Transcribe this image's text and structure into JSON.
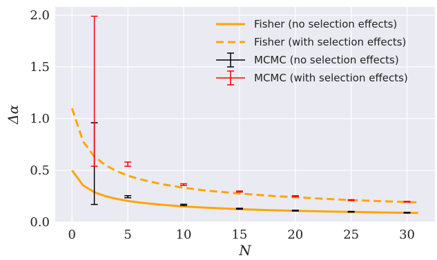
{
  "chart_data": {
    "type": "line",
    "title": "",
    "xlabel": "N",
    "ylabel": "Δα",
    "xlim": [
      -1.5,
      32.5
    ],
    "ylim": [
      0,
      2.08
    ],
    "xticks": [
      0,
      5,
      10,
      15,
      20,
      25,
      30
    ],
    "yticks": [
      0.0,
      0.5,
      1.0,
      1.5,
      2.0
    ],
    "xtick_labels": [
      "0",
      "5",
      "10",
      "15",
      "20",
      "25",
      "30"
    ],
    "ytick_labels": [
      "0.0",
      "0.5",
      "1.0",
      "1.5",
      "2.0"
    ],
    "grid": true,
    "legend_position": "top-right",
    "series": [
      {
        "name": "Fisher (no selection effects)",
        "kind": "line",
        "style": "solid",
        "color": "#FFA500",
        "x": [
          0,
          1,
          2,
          3,
          4,
          5,
          6,
          8,
          10,
          12,
          15,
          18,
          20,
          22,
          25,
          28,
          31
        ],
        "y": [
          0.5,
          0.354,
          0.289,
          0.25,
          0.224,
          0.204,
          0.189,
          0.167,
          0.151,
          0.139,
          0.125,
          0.114,
          0.109,
          0.104,
          0.098,
          0.093,
          0.088
        ]
      },
      {
        "name": "Fisher (with selection effects)",
        "kind": "line",
        "style": "dashed",
        "color": "#FFA500",
        "x": [
          0,
          1,
          2,
          3,
          4,
          5,
          6,
          8,
          10,
          12,
          15,
          18,
          20,
          22,
          25,
          28,
          31
        ],
        "y": [
          1.1,
          0.778,
          0.635,
          0.55,
          0.492,
          0.449,
          0.416,
          0.367,
          0.332,
          0.305,
          0.276,
          0.252,
          0.24,
          0.228,
          0.213,
          0.201,
          0.19
        ]
      },
      {
        "name": "MCMC (no selection effects)",
        "kind": "errorbar",
        "color": "#000000",
        "x": [
          2,
          5,
          10,
          15,
          20,
          25,
          30
        ],
        "low": [
          0.17,
          0.235,
          0.16,
          0.125,
          0.107,
          0.096,
          0.087
        ],
        "high": [
          0.96,
          0.255,
          0.172,
          0.134,
          0.115,
          0.103,
          0.094
        ]
      },
      {
        "name": "MCMC (with selection effects)",
        "kind": "errorbar",
        "color": "#FF0000",
        "x": [
          2,
          5,
          10,
          15,
          20,
          25,
          30
        ],
        "low": [
          0.54,
          0.54,
          0.355,
          0.29,
          0.245,
          0.208,
          0.193
        ],
        "high": [
          1.99,
          0.58,
          0.37,
          0.3,
          0.255,
          0.216,
          0.2
        ]
      }
    ]
  }
}
